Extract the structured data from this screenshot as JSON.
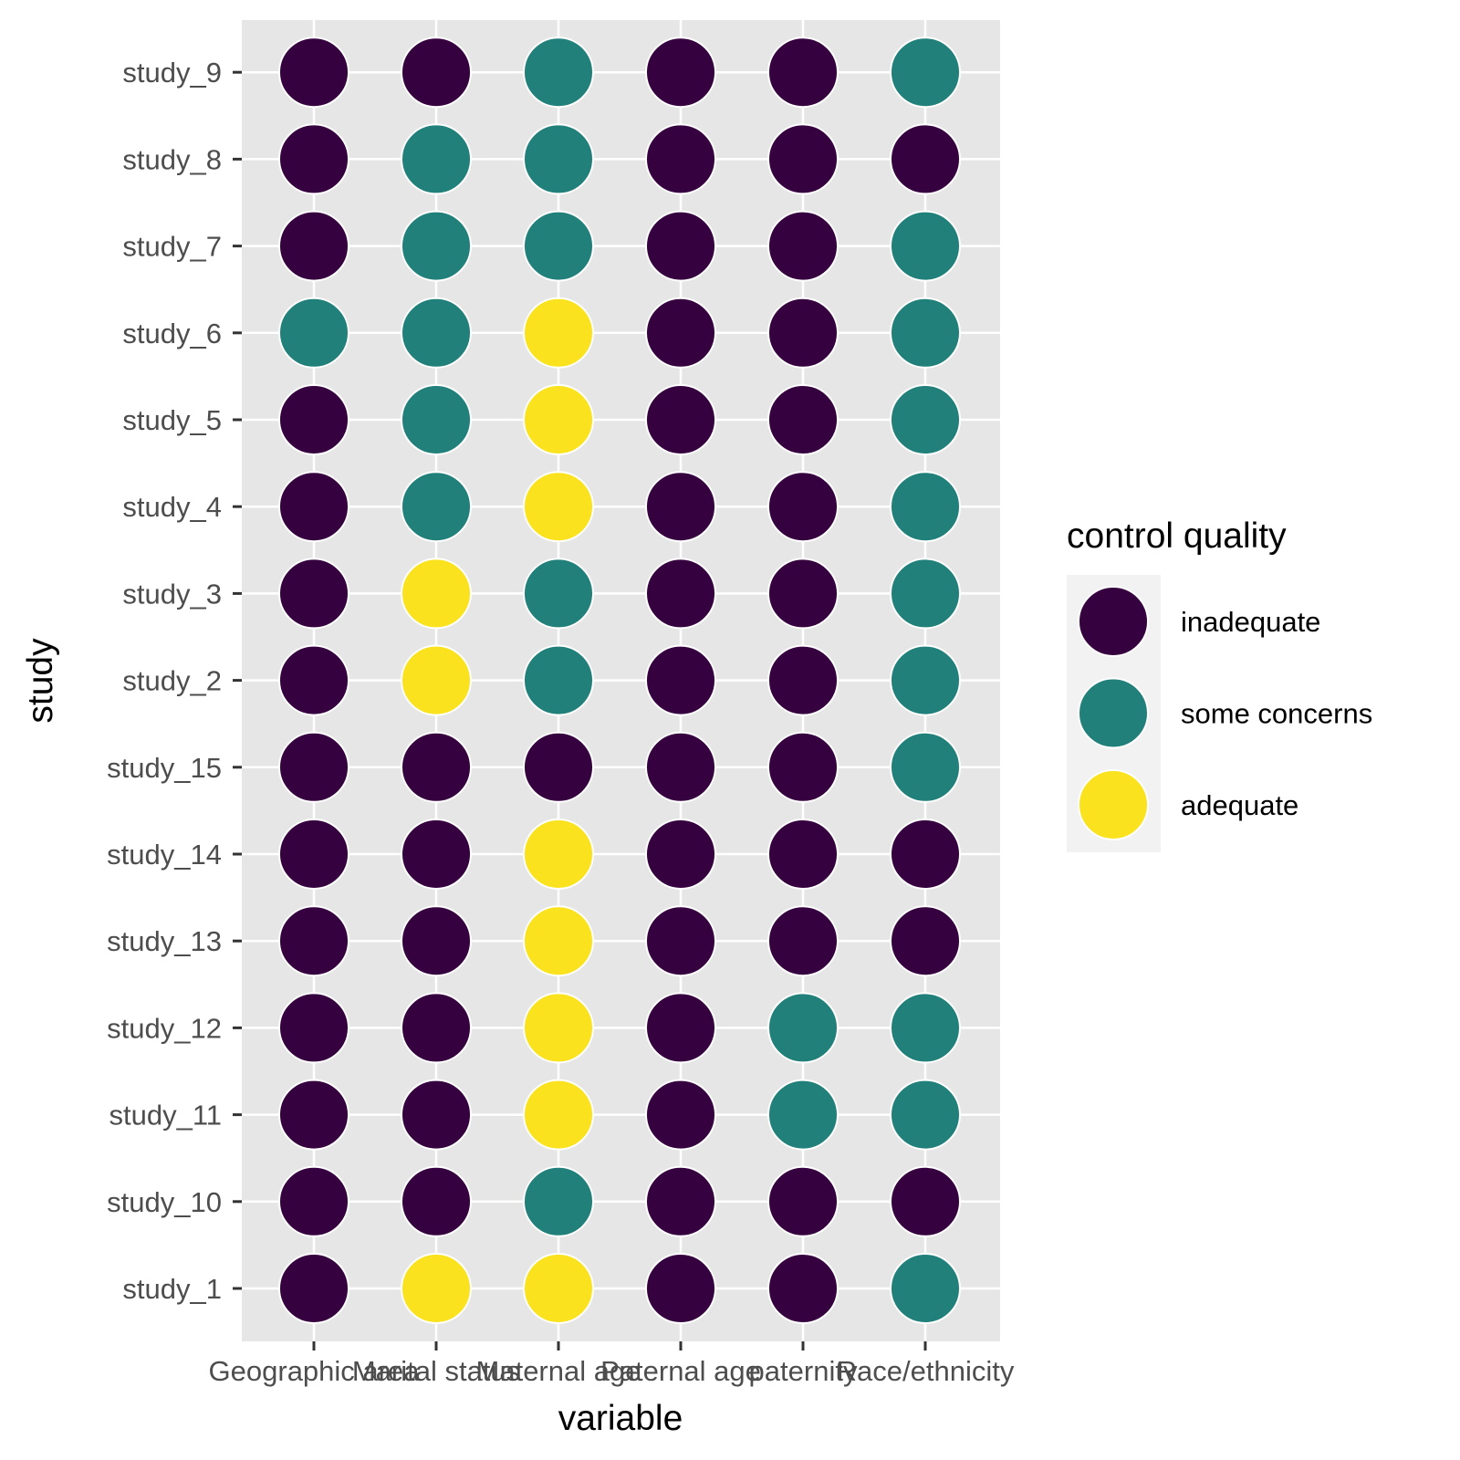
{
  "chart_data": {
    "type": "scatter",
    "xlabel": "variable",
    "ylabel": "study",
    "x_categories": [
      "Geographic area",
      "Marital status",
      "Maternal age",
      "Paternal age",
      "paternity",
      "Race/ethnicity"
    ],
    "y_categories": [
      "study_1",
      "study_10",
      "study_11",
      "study_12",
      "study_13",
      "study_14",
      "study_15",
      "study_2",
      "study_3",
      "study_4",
      "study_5",
      "study_6",
      "study_7",
      "study_8",
      "study_9"
    ],
    "legend": {
      "title": "control quality",
      "position": "right",
      "levels": [
        "inadequate",
        "some concerns",
        "adequate"
      ],
      "colors": {
        "inadequate": "#36013F",
        "some concerns": "#21807A",
        "adequate": "#FAE31E"
      }
    },
    "grid": true,
    "panel_background": "#E6E6E6",
    "values": {
      "study_9": [
        "inadequate",
        "inadequate",
        "some concerns",
        "inadequate",
        "inadequate",
        "some concerns"
      ],
      "study_8": [
        "inadequate",
        "some concerns",
        "some concerns",
        "inadequate",
        "inadequate",
        "inadequate"
      ],
      "study_7": [
        "inadequate",
        "some concerns",
        "some concerns",
        "inadequate",
        "inadequate",
        "some concerns"
      ],
      "study_6": [
        "some concerns",
        "some concerns",
        "adequate",
        "inadequate",
        "inadequate",
        "some concerns"
      ],
      "study_5": [
        "inadequate",
        "some concerns",
        "adequate",
        "inadequate",
        "inadequate",
        "some concerns"
      ],
      "study_4": [
        "inadequate",
        "some concerns",
        "adequate",
        "inadequate",
        "inadequate",
        "some concerns"
      ],
      "study_3": [
        "inadequate",
        "adequate",
        "some concerns",
        "inadequate",
        "inadequate",
        "some concerns"
      ],
      "study_2": [
        "inadequate",
        "adequate",
        "some concerns",
        "inadequate",
        "inadequate",
        "some concerns"
      ],
      "study_15": [
        "inadequate",
        "inadequate",
        "inadequate",
        "inadequate",
        "inadequate",
        "some concerns"
      ],
      "study_14": [
        "inadequate",
        "inadequate",
        "adequate",
        "inadequate",
        "inadequate",
        "inadequate"
      ],
      "study_13": [
        "inadequate",
        "inadequate",
        "adequate",
        "inadequate",
        "inadequate",
        "inadequate"
      ],
      "study_12": [
        "inadequate",
        "inadequate",
        "adequate",
        "inadequate",
        "some concerns",
        "some concerns"
      ],
      "study_11": [
        "inadequate",
        "inadequate",
        "adequate",
        "inadequate",
        "some concerns",
        "some concerns"
      ],
      "study_10": [
        "inadequate",
        "inadequate",
        "some concerns",
        "inadequate",
        "inadequate",
        "inadequate"
      ],
      "study_1": [
        "inadequate",
        "adequate",
        "adequate",
        "inadequate",
        "inadequate",
        "some concerns"
      ]
    }
  }
}
